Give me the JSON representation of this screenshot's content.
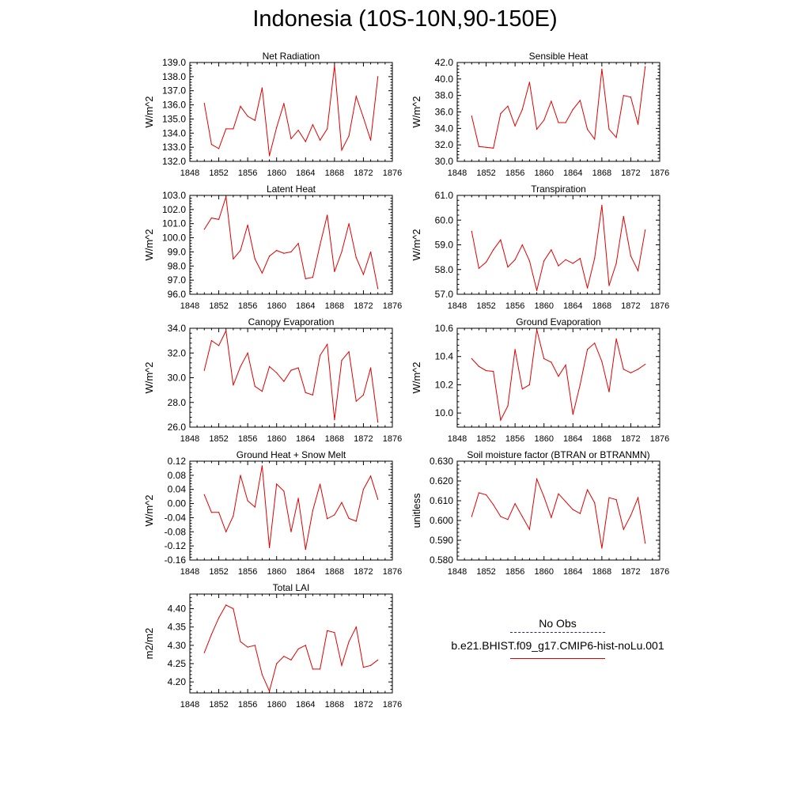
{
  "title": "Indonesia (10S-10N,90-150E)",
  "legend": {
    "obs_label": "No Obs",
    "obs_color": "#2a2a6e",
    "model_label": "b.e21.BHIST.f09_g17.CMIP6-hist-noLu.001",
    "model_color": "#e00000"
  },
  "chart_data": [
    {
      "type": "line",
      "title": "Net Radiation",
      "ylabel": "W/m^2",
      "xlabel": "",
      "xlim": [
        1848,
        1876
      ],
      "ylim": [
        132.0,
        139.0
      ],
      "x_ticks": [
        "1848",
        "1852",
        "1856",
        "1860",
        "1864",
        "1868",
        "1872",
        "1876"
      ],
      "y_ticks": [
        "132.0",
        "133.0",
        "134.0",
        "135.0",
        "136.0",
        "137.0",
        "138.0",
        "139.0"
      ],
      "grid": false,
      "x": [
        1850,
        1851,
        1852,
        1853,
        1854,
        1855,
        1856,
        1857,
        1858,
        1859,
        1860,
        1861,
        1862,
        1863,
        1864,
        1865,
        1866,
        1867,
        1868,
        1869,
        1870,
        1871,
        1872,
        1873,
        1874
      ],
      "values": [
        136.1,
        133.2,
        132.9,
        134.3,
        134.3,
        135.9,
        135.2,
        134.9,
        137.2,
        132.4,
        134.4,
        136.1,
        133.6,
        134.2,
        133.4,
        134.6,
        133.5,
        134.3,
        138.8,
        132.8,
        133.8,
        136.6,
        135.1,
        133.5,
        138.0
      ]
    },
    {
      "type": "line",
      "title": "Sensible Heat",
      "ylabel": "W/m^2",
      "xlabel": "",
      "xlim": [
        1848,
        1876
      ],
      "ylim": [
        30.0,
        42.0
      ],
      "x_ticks": [
        "1848",
        "1852",
        "1856",
        "1860",
        "1864",
        "1868",
        "1872",
        "1876"
      ],
      "y_ticks": [
        "30.0",
        "32.0",
        "34.0",
        "36.0",
        "38.0",
        "40.0",
        "42.0"
      ],
      "grid": false,
      "x": [
        1850,
        1851,
        1852,
        1853,
        1854,
        1855,
        1856,
        1857,
        1858,
        1859,
        1860,
        1861,
        1862,
        1863,
        1864,
        1865,
        1866,
        1867,
        1868,
        1869,
        1870,
        1871,
        1872,
        1873,
        1874
      ],
      "values": [
        35.5,
        31.8,
        31.7,
        31.6,
        35.8,
        36.7,
        34.3,
        36.3,
        39.6,
        33.9,
        35.0,
        37.3,
        34.7,
        34.7,
        36.3,
        37.4,
        33.9,
        32.7,
        41.2,
        33.9,
        32.9,
        38.0,
        37.8,
        34.5,
        41.5
      ]
    },
    {
      "type": "line",
      "title": "Latent Heat",
      "ylabel": "W/m^2",
      "xlabel": "",
      "xlim": [
        1848,
        1876
      ],
      "ylim": [
        96.0,
        103.0
      ],
      "x_ticks": [
        "1848",
        "1852",
        "1856",
        "1860",
        "1864",
        "1868",
        "1872",
        "1876"
      ],
      "y_ticks": [
        "96.0",
        "97.0",
        "98.0",
        "99.0",
        "100.0",
        "101.0",
        "102.0",
        "103.0"
      ],
      "grid": false,
      "x": [
        1850,
        1851,
        1852,
        1853,
        1854,
        1855,
        1856,
        1857,
        1858,
        1859,
        1860,
        1861,
        1862,
        1863,
        1864,
        1865,
        1866,
        1867,
        1868,
        1869,
        1870,
        1871,
        1872,
        1873,
        1874
      ],
      "values": [
        100.6,
        101.4,
        101.3,
        102.9,
        98.5,
        99.1,
        100.9,
        98.5,
        97.5,
        98.7,
        99.1,
        98.9,
        99.0,
        99.6,
        97.1,
        97.2,
        99.5,
        101.6,
        97.6,
        99.0,
        101.0,
        98.6,
        97.4,
        99.0,
        96.4
      ]
    },
    {
      "type": "line",
      "title": "Transpiration",
      "ylabel": "W/m^2",
      "xlabel": "",
      "xlim": [
        1848,
        1876
      ],
      "ylim": [
        57.0,
        61.0
      ],
      "x_ticks": [
        "1848",
        "1852",
        "1856",
        "1860",
        "1864",
        "1868",
        "1872",
        "1876"
      ],
      "y_ticks": [
        "57.0",
        "58.0",
        "59.0",
        "60.0",
        "61.0"
      ],
      "grid": false,
      "x": [
        1850,
        1851,
        1852,
        1853,
        1854,
        1855,
        1856,
        1857,
        1858,
        1859,
        1860,
        1861,
        1862,
        1863,
        1864,
        1865,
        1866,
        1867,
        1868,
        1869,
        1870,
        1871,
        1872,
        1873,
        1874
      ],
      "values": [
        59.55,
        58.05,
        58.3,
        58.8,
        59.2,
        58.1,
        58.4,
        59.0,
        58.35,
        57.15,
        58.35,
        58.8,
        58.15,
        58.4,
        58.25,
        58.45,
        57.25,
        58.45,
        60.6,
        57.35,
        58.25,
        60.15,
        58.55,
        57.95,
        59.6
      ]
    },
    {
      "type": "line",
      "title": "Canopy Evaporation",
      "ylabel": "W/m^2",
      "xlabel": "",
      "xlim": [
        1848,
        1876
      ],
      "ylim": [
        26.0,
        34.0
      ],
      "x_ticks": [
        "1848",
        "1852",
        "1856",
        "1860",
        "1864",
        "1868",
        "1872",
        "1876"
      ],
      "y_ticks": [
        "26.0",
        "28.0",
        "30.0",
        "32.0",
        "34.0"
      ],
      "grid": false,
      "x": [
        1850,
        1851,
        1852,
        1853,
        1854,
        1855,
        1856,
        1857,
        1858,
        1859,
        1860,
        1861,
        1862,
        1863,
        1864,
        1865,
        1866,
        1867,
        1868,
        1869,
        1870,
        1871,
        1872,
        1873,
        1874
      ],
      "values": [
        30.6,
        33.0,
        32.6,
        33.8,
        29.4,
        30.9,
        32.0,
        29.3,
        28.9,
        30.9,
        30.4,
        29.7,
        30.6,
        30.8,
        28.8,
        28.6,
        31.8,
        32.7,
        26.6,
        31.4,
        32.1,
        28.1,
        28.6,
        30.8,
        26.4
      ]
    },
    {
      "type": "line",
      "title": "Ground Evaporation",
      "ylabel": "W/m^2",
      "xlabel": "",
      "xlim": [
        1848,
        1876
      ],
      "ylim": [
        9.9,
        10.6
      ],
      "x_ticks": [
        "1848",
        "1852",
        "1856",
        "1860",
        "1864",
        "1868",
        "1872",
        "1876"
      ],
      "y_ticks": [
        "10.0",
        "10.2",
        "10.4",
        "10.6"
      ],
      "grid": false,
      "x": [
        1850,
        1851,
        1852,
        1853,
        1854,
        1855,
        1856,
        1857,
        1858,
        1859,
        1860,
        1861,
        1862,
        1863,
        1864,
        1865,
        1866,
        1867,
        1868,
        1869,
        1870,
        1871,
        1872,
        1873,
        1874
      ],
      "values": [
        10.385,
        10.33,
        10.3,
        10.295,
        9.95,
        10.05,
        10.45,
        10.17,
        10.2,
        10.59,
        10.385,
        10.36,
        10.26,
        10.34,
        9.99,
        10.2,
        10.45,
        10.495,
        10.365,
        10.15,
        10.525,
        10.31,
        10.285,
        10.31,
        10.345
      ]
    },
    {
      "type": "line",
      "title": "Ground Heat + Snow Melt",
      "ylabel": "W/m^2",
      "xlabel": "",
      "xlim": [
        1848,
        1876
      ],
      "ylim": [
        -0.16,
        0.12
      ],
      "x_ticks": [
        "1848",
        "1852",
        "1856",
        "1860",
        "1864",
        "1868",
        "1872",
        "1876"
      ],
      "y_ticks": [
        "-0.16",
        "-0.12",
        "-0.08",
        "-0.04",
        "0.00",
        "0.04",
        "0.08",
        "0.12"
      ],
      "grid": false,
      "x": [
        1850,
        1851,
        1852,
        1853,
        1854,
        1855,
        1856,
        1857,
        1858,
        1859,
        1860,
        1861,
        1862,
        1863,
        1864,
        1865,
        1866,
        1867,
        1868,
        1869,
        1870,
        1871,
        1872,
        1873,
        1874
      ],
      "values": [
        0.025,
        -0.025,
        -0.025,
        -0.08,
        -0.035,
        0.08,
        0.008,
        -0.01,
        0.107,
        -0.125,
        0.055,
        0.035,
        -0.08,
        0.015,
        -0.13,
        -0.02,
        0.055,
        -0.043,
        -0.032,
        0.003,
        -0.042,
        -0.05,
        0.04,
        0.078,
        0.012
      ]
    },
    {
      "type": "line",
      "title": "Soil moisture factor (BTRAN or BTRANMN)",
      "ylabel": "unitless",
      "xlabel": "",
      "xlim": [
        1848,
        1876
      ],
      "ylim": [
        0.58,
        0.63
      ],
      "x_ticks": [
        "1848",
        "1852",
        "1856",
        "1860",
        "1864",
        "1868",
        "1872",
        "1876"
      ],
      "y_ticks": [
        "0.580",
        "0.590",
        "0.600",
        "0.610",
        "0.620",
        "0.630"
      ],
      "grid": false,
      "x": [
        1850,
        1851,
        1852,
        1853,
        1854,
        1855,
        1856,
        1857,
        1858,
        1859,
        1860,
        1861,
        1862,
        1863,
        1864,
        1865,
        1866,
        1867,
        1868,
        1869,
        1870,
        1871,
        1872,
        1873,
        1874
      ],
      "values": [
        0.602,
        0.614,
        0.613,
        0.608,
        0.602,
        0.6005,
        0.6085,
        0.602,
        0.5955,
        0.621,
        0.612,
        0.6015,
        0.6135,
        0.6095,
        0.6055,
        0.6035,
        0.6155,
        0.609,
        0.586,
        0.6115,
        0.6105,
        0.5955,
        0.6025,
        0.6115,
        0.5885
      ]
    },
    {
      "type": "line",
      "title": "Total LAI",
      "ylabel": "m2/m2",
      "xlabel": "",
      "xlim": [
        1848,
        1876
      ],
      "ylim": [
        4.17,
        4.44
      ],
      "x_ticks": [
        "1848",
        "1852",
        "1856",
        "1860",
        "1864",
        "1868",
        "1872",
        "1876"
      ],
      "y_ticks": [
        "4.20",
        "4.25",
        "4.30",
        "4.35",
        "4.40"
      ],
      "grid": false,
      "x": [
        1850,
        1851,
        1852,
        1853,
        1854,
        1855,
        1856,
        1857,
        1858,
        1859,
        1860,
        1861,
        1862,
        1863,
        1864,
        1865,
        1866,
        1867,
        1868,
        1869,
        1870,
        1871,
        1872,
        1873,
        1874
      ],
      "values": [
        4.28,
        4.33,
        4.375,
        4.41,
        4.4,
        4.31,
        4.295,
        4.3,
        4.22,
        4.175,
        4.25,
        4.27,
        4.26,
        4.29,
        4.3,
        4.235,
        4.235,
        4.34,
        4.335,
        4.245,
        4.31,
        4.35,
        4.24,
        4.245,
        4.26
      ]
    }
  ]
}
